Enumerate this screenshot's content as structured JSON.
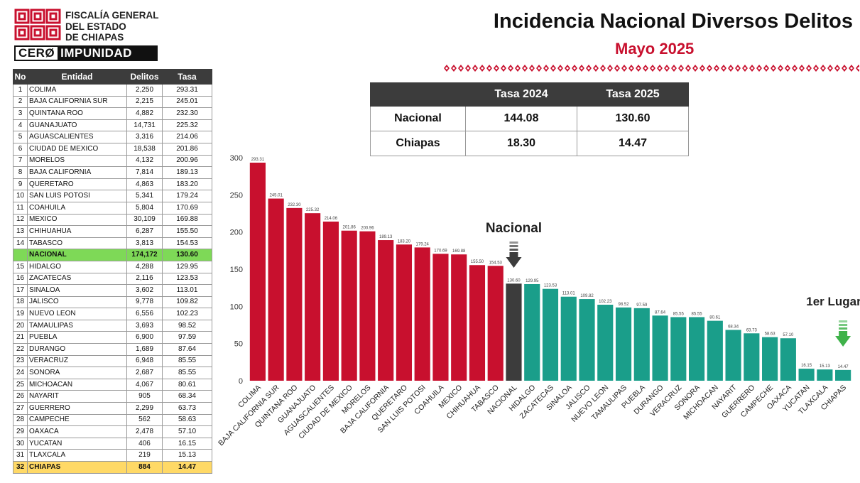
{
  "header": {
    "logo_lines": [
      "FISCALÍA GENERAL",
      "DEL ESTADO",
      "DE CHIAPAS"
    ],
    "slogan_part1": "CERØ",
    "slogan_part2": "IMPUNIDAD",
    "title": "Incidencia Nacional Diversos Delitos",
    "subtitle": "Mayo 2025"
  },
  "colors": {
    "red": "#c8102e",
    "teal": "#1a9e8a",
    "national": "#3c3c3c",
    "green": "#7ed957",
    "yellow": "#ffd966",
    "arrow_national": "#3c3c3c",
    "arrow_first": "#3fb24a"
  },
  "ranking_table": {
    "headers": [
      "No",
      "Entidad",
      "Delitos",
      "Tasa"
    ],
    "rows": [
      {
        "no": "1",
        "entidad": "COLIMA",
        "delitos": "2,250",
        "tasa": "293.31"
      },
      {
        "no": "2",
        "entidad": "BAJA CALIFORNIA SUR",
        "delitos": "2,215",
        "tasa": "245.01"
      },
      {
        "no": "3",
        "entidad": "QUINTANA ROO",
        "delitos": "4,882",
        "tasa": "232.30"
      },
      {
        "no": "4",
        "entidad": "GUANAJUATO",
        "delitos": "14,731",
        "tasa": "225.32"
      },
      {
        "no": "5",
        "entidad": "AGUASCALIENTES",
        "delitos": "3,316",
        "tasa": "214.06"
      },
      {
        "no": "6",
        "entidad": "CIUDAD DE MEXICO",
        "delitos": "18,538",
        "tasa": "201.86"
      },
      {
        "no": "7",
        "entidad": "MORELOS",
        "delitos": "4,132",
        "tasa": "200.96"
      },
      {
        "no": "8",
        "entidad": "BAJA CALIFORNIA",
        "delitos": "7,814",
        "tasa": "189.13"
      },
      {
        "no": "9",
        "entidad": "QUERETARO",
        "delitos": "4,863",
        "tasa": "183.20"
      },
      {
        "no": "10",
        "entidad": "SAN LUIS POTOSI",
        "delitos": "5,341",
        "tasa": "179.24"
      },
      {
        "no": "11",
        "entidad": "COAHUILA",
        "delitos": "5,804",
        "tasa": "170.69"
      },
      {
        "no": "12",
        "entidad": "MEXICO",
        "delitos": "30,109",
        "tasa": "169.88"
      },
      {
        "no": "13",
        "entidad": "CHIHUAHUA",
        "delitos": "6,287",
        "tasa": "155.50"
      },
      {
        "no": "14",
        "entidad": "TABASCO",
        "delitos": "3,813",
        "tasa": "154.53"
      },
      {
        "no": "",
        "entidad": "NACIONAL",
        "delitos": "174,172",
        "tasa": "130.60",
        "highlight": "nac"
      },
      {
        "no": "15",
        "entidad": "HIDALGO",
        "delitos": "4,288",
        "tasa": "129.95"
      },
      {
        "no": "16",
        "entidad": "ZACATECAS",
        "delitos": "2,116",
        "tasa": "123.53"
      },
      {
        "no": "17",
        "entidad": "SINALOA",
        "delitos": "3,602",
        "tasa": "113.01"
      },
      {
        "no": "18",
        "entidad": "JALISCO",
        "delitos": "9,778",
        "tasa": "109.82"
      },
      {
        "no": "19",
        "entidad": "NUEVO LEON",
        "delitos": "6,556",
        "tasa": "102.23"
      },
      {
        "no": "20",
        "entidad": "TAMAULIPAS",
        "delitos": "3,693",
        "tasa": "98.52"
      },
      {
        "no": "21",
        "entidad": "PUEBLA",
        "delitos": "6,900",
        "tasa": "97.59"
      },
      {
        "no": "22",
        "entidad": "DURANGO",
        "delitos": "1,689",
        "tasa": "87.64"
      },
      {
        "no": "23",
        "entidad": "VERACRUZ",
        "delitos": "6,948",
        "tasa": "85.55"
      },
      {
        "no": "24",
        "entidad": "SONORA",
        "delitos": "2,687",
        "tasa": "85.55"
      },
      {
        "no": "25",
        "entidad": "MICHOACAN",
        "delitos": "4,067",
        "tasa": "80.61"
      },
      {
        "no": "26",
        "entidad": "NAYARIT",
        "delitos": "905",
        "tasa": "68.34"
      },
      {
        "no": "27",
        "entidad": "GUERRERO",
        "delitos": "2,299",
        "tasa": "63.73"
      },
      {
        "no": "28",
        "entidad": "CAMPECHE",
        "delitos": "562",
        "tasa": "58.63"
      },
      {
        "no": "29",
        "entidad": "OAXACA",
        "delitos": "2,478",
        "tasa": "57.10"
      },
      {
        "no": "30",
        "entidad": "YUCATAN",
        "delitos": "406",
        "tasa": "16.15"
      },
      {
        "no": "31",
        "entidad": "TLAXCALA",
        "delitos": "219",
        "tasa": "15.13"
      },
      {
        "no": "32",
        "entidad": "CHIAPAS",
        "delitos": "884",
        "tasa": "14.47",
        "highlight": "chis"
      }
    ]
  },
  "rates_table": {
    "headers": [
      "",
      "Tasa 2024",
      "Tasa 2025"
    ],
    "rows": [
      {
        "label": "Nacional",
        "t2024": "144.08",
        "t2025": "130.60"
      },
      {
        "label": "Chiapas",
        "t2024": "18.30",
        "t2025": "14.47"
      }
    ]
  },
  "annotations": {
    "nacional_label": "Nacional",
    "first_place_label": "1er Lugar"
  },
  "chart_data": {
    "type": "bar",
    "ylim": [
      0,
      300
    ],
    "yticks": [
      0,
      50,
      100,
      150,
      200,
      250,
      300
    ],
    "grid": false,
    "categories": [
      "COLIMA",
      "BAJA CALIFORNIA SUR",
      "QUINTANA ROO",
      "GUANAJUATO",
      "AGUASCALIENTES",
      "CIUDAD DE MEXICO",
      "MORELOS",
      "BAJA CALIFORNIA",
      "QUERETARO",
      "SAN LUIS POTOSI",
      "COAHUILA",
      "MEXICO",
      "CHIHUAHUA",
      "TABASCO",
      "NACIONAL",
      "HIDALGO",
      "ZACATECAS",
      "SINALOA",
      "JALISCO",
      "NUEVO LEON",
      "TAMAULIPAS",
      "PUEBLA",
      "DURANGO",
      "VERACRUZ",
      "SONORA",
      "MICHOACAN",
      "NAYARIT",
      "GUERRERO",
      "CAMPECHE",
      "OAXACA",
      "YUCATAN",
      "TLAXCALA",
      "CHIAPAS"
    ],
    "values": [
      293.31,
      245.01,
      232.3,
      225.32,
      214.06,
      201.86,
      200.96,
      189.13,
      183.2,
      179.24,
      170.69,
      169.88,
      155.5,
      154.53,
      130.6,
      129.95,
      123.53,
      113.01,
      109.82,
      102.23,
      98.52,
      97.59,
      87.64,
      85.55,
      85.55,
      80.61,
      68.34,
      63.73,
      58.63,
      57.1,
      16.15,
      15.13,
      14.47
    ],
    "value_labels": [
      "293.31",
      "245.01",
      "232.30",
      "225.32",
      "214.06",
      "201.86",
      "200.96",
      "189.13",
      "183.20",
      "179.24",
      "170.69",
      "169.88",
      "155.50",
      "154.53",
      "130.60",
      "129.95",
      "123.53",
      "113.01",
      "109.82",
      "102.23",
      "98.52",
      "97.59",
      "87.64",
      "85.55",
      "85.55",
      "80.61",
      "68.34",
      "63.73",
      "58.63",
      "57.10",
      "16.15",
      "15.13",
      "14.47"
    ],
    "bar_colors": [
      "red",
      "red",
      "red",
      "red",
      "red",
      "red",
      "red",
      "red",
      "red",
      "red",
      "red",
      "red",
      "red",
      "red",
      "national",
      "teal",
      "teal",
      "teal",
      "teal",
      "teal",
      "teal",
      "teal",
      "teal",
      "teal",
      "teal",
      "teal",
      "teal",
      "teal",
      "teal",
      "teal",
      "teal",
      "teal",
      "teal"
    ]
  }
}
